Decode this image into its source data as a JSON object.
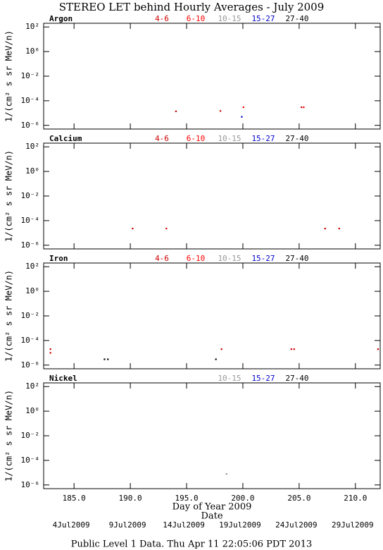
{
  "title": "STEREO LET behind Hourly Averages - July 2009",
  "footer": "Public Level 1 Data. Thu Apr 11 22:05:06 PDT 2013",
  "xaxis": {
    "xlim": [
      182.3,
      212.2
    ],
    "xticks": [
      {
        "value": 185,
        "label": "185.0"
      },
      {
        "value": 190,
        "label": "190.0"
      },
      {
        "value": 195,
        "label": "195.0"
      },
      {
        "value": 200,
        "label": "200.0"
      },
      {
        "value": 205,
        "label": "205.0"
      },
      {
        "value": 210,
        "label": "210.0"
      }
    ],
    "label": "Day of Year 2009",
    "date_label": "Date",
    "date_ticks": [
      {
        "value": 185,
        "label": "4Jul2009"
      },
      {
        "value": 190,
        "label": "9Jul2009"
      },
      {
        "value": 195,
        "label": "14Jul2009"
      },
      {
        "value": 200,
        "label": "19Jul2009"
      },
      {
        "value": 205,
        "label": "24Jul2009"
      },
      {
        "value": 210,
        "label": "29Jul2009"
      }
    ]
  },
  "chart_data": [
    {
      "type": "scatter",
      "label": "Argon",
      "y_label": "1/(cm² s sr MeV/n)",
      "log_y": true,
      "ylim": [
        5e-07,
        200
      ],
      "yticks": [
        {
          "value": 100,
          "label": "10²"
        },
        {
          "value": 1,
          "label": "10⁰"
        },
        {
          "value": 0.01,
          "label": "10⁻²"
        },
        {
          "value": 0.0001,
          "label": "10⁻⁴"
        },
        {
          "value": 1e-06,
          "label": "10⁻⁶"
        }
      ],
      "series": [
        {
          "name": "4-6",
          "color": "#cc0000",
          "x": [
            194.05,
            198.0,
            205.2
          ],
          "y": [
            1.4e-05,
            1.5e-05,
            3e-05
          ]
        },
        {
          "name": "6-10",
          "color": "#ff0000",
          "x": [
            200.05,
            205.4
          ],
          "y": [
            3e-05,
            3e-05
          ]
        },
        {
          "name": "10-15",
          "color": "#999999",
          "x": [],
          "y": []
        },
        {
          "name": "15-27",
          "color": "#0000cc",
          "x": [
            199.9
          ],
          "y": [
            5e-06
          ]
        },
        {
          "name": "27-40",
          "color": "#000000",
          "x": [],
          "y": []
        }
      ]
    },
    {
      "type": "scatter",
      "label": "Calcium",
      "y_label": "1/(cm² s sr MeV/n)",
      "log_y": true,
      "ylim": [
        5e-07,
        200
      ],
      "yticks": [
        {
          "value": 100,
          "label": "10²"
        },
        {
          "value": 1,
          "label": "10⁰"
        },
        {
          "value": 0.01,
          "label": "10⁻²"
        },
        {
          "value": 0.0001,
          "label": "10⁻⁴"
        },
        {
          "value": 1e-06,
          "label": "10⁻⁶"
        }
      ],
      "series": [
        {
          "name": "4-6",
          "color": "#cc0000",
          "x": [
            190.2,
            193.2,
            207.3,
            208.55
          ],
          "y": [
            2.3e-05,
            2.3e-05,
            2.3e-05,
            2.3e-05
          ]
        },
        {
          "name": "6-10",
          "color": "#ff0000",
          "x": [],
          "y": []
        },
        {
          "name": "10-15",
          "color": "#999999",
          "x": [],
          "y": []
        },
        {
          "name": "15-27",
          "color": "#0000cc",
          "x": [],
          "y": []
        },
        {
          "name": "27-40",
          "color": "#000000",
          "x": [],
          "y": []
        }
      ]
    },
    {
      "type": "scatter",
      "label": "Iron",
      "y_label": "1/(cm² s sr MeV/n)",
      "log_y": true,
      "ylim": [
        5e-07,
        200
      ],
      "yticks": [
        {
          "value": 100,
          "label": "10²"
        },
        {
          "value": 1,
          "label": "10⁰"
        },
        {
          "value": 0.01,
          "label": "10⁻²"
        },
        {
          "value": 0.0001,
          "label": "10⁻⁴"
        },
        {
          "value": 1e-06,
          "label": "10⁻⁶"
        }
      ],
      "series": [
        {
          "name": "4-6",
          "color": "#cc0000",
          "x": [
            182.9,
            182.9,
            198.1,
            204.3,
            204.55,
            212.0
          ],
          "y": [
            2e-05,
            1e-05,
            2e-05,
            2e-05,
            2e-05,
            2e-05
          ]
        },
        {
          "name": "6-10",
          "color": "#ff0000",
          "x": [],
          "y": []
        },
        {
          "name": "10-15",
          "color": "#999999",
          "x": [],
          "y": []
        },
        {
          "name": "15-27",
          "color": "#0000cc",
          "x": [],
          "y": []
        },
        {
          "name": "27-40",
          "color": "#000000",
          "x": [
            187.7,
            188.0,
            197.6
          ],
          "y": [
            3e-06,
            3e-06,
            3e-06
          ]
        }
      ]
    },
    {
      "type": "scatter",
      "label": "Nickel",
      "y_label": "1/(cm² s sr MeV/n)",
      "log_y": true,
      "ylim": [
        5e-07,
        200
      ],
      "yticks": [
        {
          "value": 100,
          "label": "10²"
        },
        {
          "value": 1,
          "label": "10⁰"
        },
        {
          "value": 0.01,
          "label": "10⁻²"
        },
        {
          "value": 0.0001,
          "label": "10⁻⁴"
        },
        {
          "value": 1e-06,
          "label": "10⁻⁶"
        }
      ],
      "series": [
        {
          "name": "10-15",
          "color": "#999999",
          "x": [
            198.55
          ],
          "y": [
            8e-06
          ]
        },
        {
          "name": "15-27",
          "color": "#0000cc",
          "x": [],
          "y": []
        },
        {
          "name": "27-40",
          "color": "#000000",
          "x": [],
          "y": []
        }
      ]
    }
  ]
}
